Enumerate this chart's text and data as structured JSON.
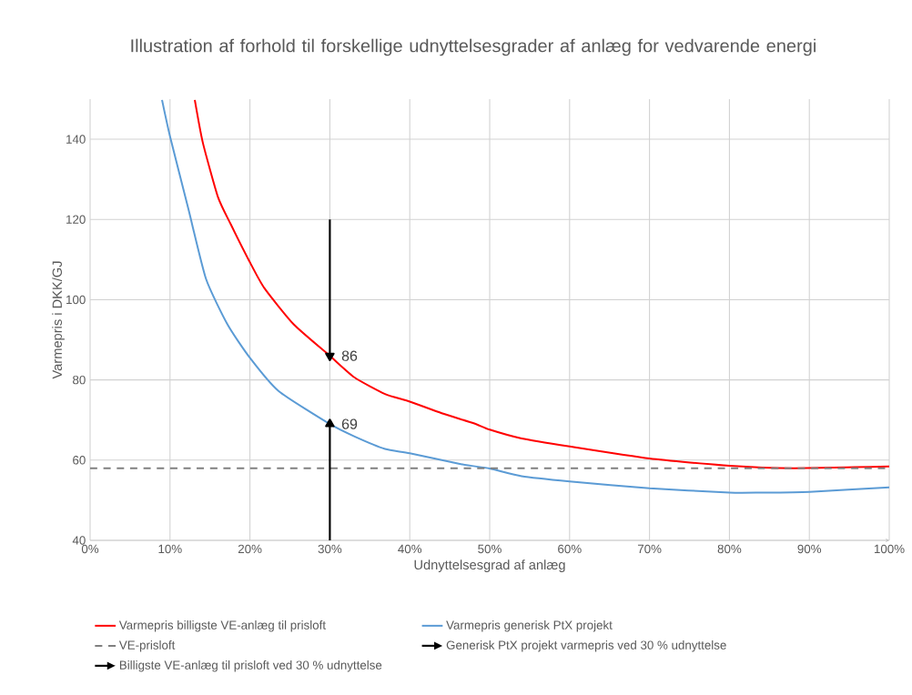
{
  "chart_data": {
    "type": "line",
    "title": "Illustration af forhold til forskellige udnyttelsesgrader af anlæg for vedvarende energi",
    "xlabel": "Udnyttelsesgrad af anlæg",
    "ylabel": "Varmepris i DKK/GJ",
    "xlim": [
      0,
      100
    ],
    "ylim": [
      40,
      150
    ],
    "xticks": [
      {
        "value": 0,
        "label": "0%"
      },
      {
        "value": 10,
        "label": "10%"
      },
      {
        "value": 20,
        "label": "20%"
      },
      {
        "value": 30,
        "label": "30%"
      },
      {
        "value": 40,
        "label": "40%"
      },
      {
        "value": 50,
        "label": "50%"
      },
      {
        "value": 60,
        "label": "60%"
      },
      {
        "value": 70,
        "label": "70%"
      },
      {
        "value": 80,
        "label": "80%"
      },
      {
        "value": 90,
        "label": "90%"
      },
      {
        "value": 100,
        "label": "100%"
      }
    ],
    "yticks": [
      40,
      60,
      80,
      100,
      120,
      140
    ],
    "grid": true,
    "legend": "bottom",
    "series": [
      {
        "name": "Varmepris billigste VE-anlæg til prisloft",
        "color": "#ff0000",
        "x": [
          13.1,
          14.1,
          16.0,
          17.6,
          19.9,
          21.8,
          25.5,
          30,
          33.1,
          36.9,
          40,
          44,
          48,
          50,
          54,
          60,
          70,
          80,
          88,
          100
        ],
        "values": [
          149.8,
          139.2,
          125.6,
          118.8,
          109.7,
          102.9,
          93.8,
          86,
          80.6,
          76.5,
          74.6,
          71.7,
          69.2,
          67.6,
          65.4,
          63.4,
          60.4,
          58.6,
          58.0,
          58.4
        ]
      },
      {
        "name": "Varmepris generisk PtX projekt",
        "color": "#5b9bd5",
        "x": [
          9.0,
          10.0,
          12.3,
          14.5,
          17.2,
          20,
          23.6,
          30,
          33.1,
          36.9,
          40,
          46.4,
          50,
          54,
          60,
          70,
          80,
          84,
          90,
          100
        ],
        "values": [
          149.8,
          140.7,
          122.6,
          105.2,
          93.8,
          85.5,
          77.2,
          69,
          65.9,
          62.8,
          61.7,
          59.0,
          57.9,
          56.0,
          54.7,
          53.0,
          51.9,
          51.9,
          52.1,
          53.2
        ]
      },
      {
        "name": "VE-prisloft",
        "color": "#808080",
        "line_style": "dashed",
        "x": [
          0,
          100
        ],
        "values": [
          58,
          58
        ]
      },
      {
        "name": "Generisk PtX projekt varmepris ved 30 % udnyttelse",
        "color": "#000000",
        "x": [
          30,
          30
        ],
        "values": [
          40,
          69
        ]
      },
      {
        "name": "Billigste VE-anlæg til prisloft ved 30 % udnyttelse",
        "color": "#000000",
        "x": [
          30,
          30
        ],
        "values": [
          120,
          86
        ]
      }
    ],
    "annotations": [
      {
        "text": "86",
        "x": 30,
        "y": 86
      },
      {
        "text": "69",
        "x": 30,
        "y": 69
      }
    ]
  }
}
